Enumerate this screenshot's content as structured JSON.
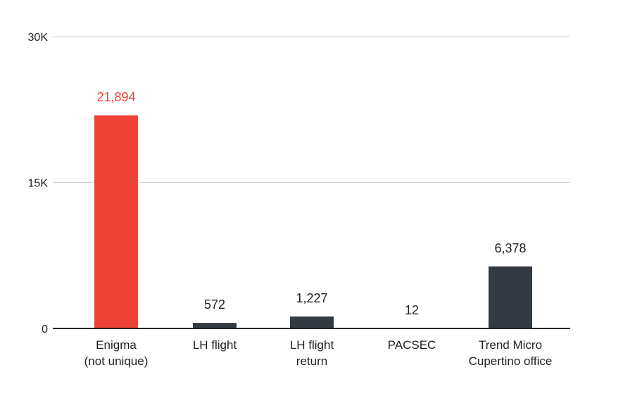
{
  "chart_data": {
    "type": "bar",
    "categories": [
      [
        "Enigma",
        "(not unique)"
      ],
      [
        "LH flight"
      ],
      [
        "LH flight",
        "return"
      ],
      [
        "PACSEC"
      ],
      [
        "Trend Micro",
        "Cupertino office"
      ]
    ],
    "values": [
      21894,
      572,
      1227,
      12,
      6378
    ],
    "value_labels": [
      "21,894",
      "572",
      "1,227",
      "12",
      "6,378"
    ],
    "y_ticks": [
      0,
      15000,
      30000
    ],
    "y_tick_labels": [
      "0",
      "15K",
      "30K"
    ],
    "ylim": [
      0,
      30000
    ],
    "grid": true,
    "title": "",
    "xlabel": "",
    "ylabel": "",
    "highlight_index": 0,
    "colors": {
      "highlight": "#ef4136",
      "default": "#333a42",
      "highlight_label": "#ef4136",
      "default_label": "#222222"
    }
  }
}
